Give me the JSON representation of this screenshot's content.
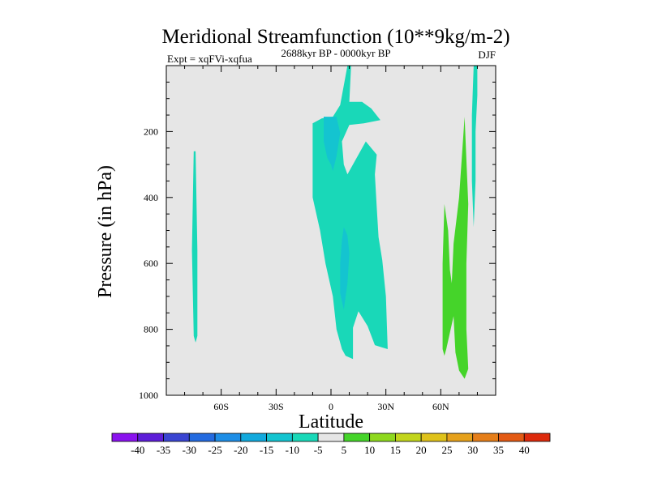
{
  "chart_data": {
    "type": "filled-contour",
    "title": "Meridional Streamfunction (10**9kg/m-2)",
    "left_label": "Expt = xqFVi-xqfua",
    "center_label": "2688kyr BP - 0000kyr BP",
    "right_label": "DJF",
    "xlabel": "Latitude",
    "ylabel": "Pressure (in hPa)",
    "xlim": [
      -90,
      90
    ],
    "ylim": [
      1000,
      0
    ],
    "x_ticks": [
      {
        "value": -60,
        "label": "60S"
      },
      {
        "value": -30,
        "label": "30S"
      },
      {
        "value": 0,
        "label": "0"
      },
      {
        "value": 30,
        "label": "30N"
      },
      {
        "value": 60,
        "label": "60N"
      }
    ],
    "y_ticks": [
      {
        "value": 200,
        "label": "200"
      },
      {
        "value": 400,
        "label": "400"
      },
      {
        "value": 600,
        "label": "600"
      },
      {
        "value": 800,
        "label": "800"
      },
      {
        "value": 1000,
        "label": "1000"
      }
    ],
    "background_color": "#e6e6e6",
    "colorbar": {
      "labels": [
        "-40",
        "-35",
        "-30",
        "-25",
        "-20",
        "-15",
        "-10",
        "-5",
        "5",
        "10",
        "15",
        "20",
        "25",
        "30",
        "35",
        "40"
      ],
      "colors": [
        "#8a13ee",
        "#5d1ed8",
        "#3a45d2",
        "#246be0",
        "#1e8ee6",
        "#12a9dd",
        "#14c4d0",
        "#19d8b8",
        "#e6e6e6",
        "#45d42a",
        "#8ed81e",
        "#c2d51c",
        "#dfc21a",
        "#e6a11b",
        "#e57e19",
        "#e35a14",
        "#dd2a0c"
      ]
    },
    "regions": [
      {
        "value": "-10",
        "color": "#19d8b8",
        "points": [
          [
            -75,
            260
          ],
          [
            -74,
            260
          ],
          [
            -73,
            560
          ],
          [
            -73,
            820
          ],
          [
            -74,
            840
          ],
          [
            -75,
            820
          ],
          [
            -76,
            560
          ]
        ]
      },
      {
        "value": "-10",
        "color": "#19d8b8",
        "points": [
          [
            9,
            0
          ],
          [
            11,
            0
          ],
          [
            10,
            110
          ],
          [
            17,
            110
          ],
          [
            22,
            130
          ],
          [
            27,
            165
          ],
          [
            18,
            175
          ],
          [
            10,
            180
          ],
          [
            6,
            230
          ],
          [
            7,
            300
          ],
          [
            9,
            330
          ],
          [
            19,
            230
          ],
          [
            25,
            270
          ],
          [
            24,
            330
          ],
          [
            25,
            430
          ],
          [
            26,
            520
          ],
          [
            28,
            590
          ],
          [
            30,
            700
          ],
          [
            31,
            860
          ],
          [
            28,
            855
          ],
          [
            24,
            848
          ],
          [
            20,
            790
          ],
          [
            15,
            745
          ],
          [
            12,
            795
          ],
          [
            12,
            890
          ],
          [
            8,
            880
          ],
          [
            6,
            860
          ],
          [
            3,
            800
          ],
          [
            1,
            700
          ],
          [
            -3,
            600
          ],
          [
            -6,
            500
          ],
          [
            -10,
            400
          ],
          [
            -10,
            300
          ],
          [
            -10,
            175
          ],
          [
            -5,
            160
          ],
          [
            1,
            155
          ],
          [
            5,
            120
          ]
        ]
      },
      {
        "value": "-15",
        "color": "#14c4d0",
        "points": [
          [
            -4,
            155
          ],
          [
            3,
            155
          ],
          [
            5,
            205
          ],
          [
            3,
            275
          ],
          [
            1,
            320
          ],
          [
            0,
            300
          ],
          [
            -2,
            280
          ],
          [
            -4,
            230
          ]
        ]
      },
      {
        "value": "-15",
        "color": "#14c4d0",
        "points": [
          [
            7,
            490
          ],
          [
            9,
            515
          ],
          [
            10,
            570
          ],
          [
            9,
            660
          ],
          [
            7,
            740
          ],
          [
            5,
            690
          ],
          [
            5,
            600
          ],
          [
            6,
            530
          ]
        ]
      },
      {
        "value": "10",
        "color": "#45d42a",
        "points": [
          [
            62,
            420
          ],
          [
            64,
            500
          ],
          [
            65,
            620
          ],
          [
            66,
            660
          ],
          [
            67,
            540
          ],
          [
            70,
            400
          ],
          [
            73,
            155
          ],
          [
            75,
            420
          ],
          [
            74,
            600
          ],
          [
            74,
            800
          ],
          [
            75,
            920
          ],
          [
            73,
            950
          ],
          [
            70,
            925
          ],
          [
            68,
            870
          ],
          [
            67,
            760
          ],
          [
            63,
            860
          ],
          [
            62,
            880
          ],
          [
            61,
            860
          ],
          [
            61,
            600
          ]
        ]
      },
      {
        "value": "-10",
        "color": "#19d8b8",
        "points": [
          [
            78,
            0
          ],
          [
            80,
            0
          ],
          [
            80,
            90
          ],
          [
            79,
            200
          ],
          [
            79,
            350
          ],
          [
            78,
            490
          ],
          [
            77,
            350
          ],
          [
            77,
            150
          ]
        ]
      }
    ]
  }
}
